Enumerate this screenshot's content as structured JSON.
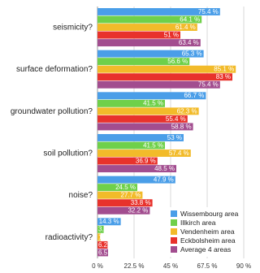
{
  "chart_data": {
    "type": "hbar",
    "categories": [
      "seismicity?",
      "surface deformation?",
      "groundwater pollution?",
      "soil pollution?",
      "noise?",
      "radioactivity?"
    ],
    "series": [
      {
        "name": "Wissembourg area",
        "color": "#4a9ee8",
        "values": [
          75.4,
          65.3,
          66.7,
          53,
          47.9,
          14.3
        ],
        "value_labels": [
          "75.4 %",
          "65.3 %",
          "66.7 %",
          "53 %",
          "47.9 %",
          "14.3 %"
        ]
      },
      {
        "name": "Illkirch area",
        "color": "#6fd04a",
        "values": [
          64.1,
          56.6,
          41.5,
          41.5,
          24.5,
          3.8
        ],
        "value_labels": [
          "64.1 %",
          "56.6 %",
          "41.5 %",
          "41.5 %",
          "24.5 %",
          "3.8 %"
        ]
      },
      {
        "name": "Vendenheim area",
        "color": "#f2bb2a",
        "values": [
          61.4,
          85.1,
          62.3,
          57.4,
          27.7,
          1.9
        ],
        "value_labels": [
          "61.4 %",
          "85.1 %",
          "62.3 %",
          "57.4 %",
          "27.7 %",
          "1.9 %"
        ]
      },
      {
        "name": "Eckbolsheim area",
        "color": "#e8322c",
        "values": [
          51,
          83,
          55.4,
          36.9,
          33.8,
          6.2
        ],
        "value_labels": [
          "51 %",
          "83 %",
          "55.4 %",
          "36.9 %",
          "33.8 %",
          "6.2 %"
        ]
      },
      {
        "name": "Average 4 areas",
        "color": "#a24d8f",
        "values": [
          63.4,
          75.4,
          58.8,
          48.5,
          32.2,
          6.5
        ],
        "value_labels": [
          "63.4 %",
          "75.4 %",
          "58.8 %",
          "48.5 %",
          "32.2 %",
          "6.5 %"
        ]
      }
    ],
    "xlim": [
      0,
      90
    ],
    "xticks": [
      {
        "value": 0,
        "label": "0 %"
      },
      {
        "value": 22.5,
        "label": "22.5 %"
      },
      {
        "value": 45,
        "label": "45 %"
      },
      {
        "value": 67.5,
        "label": "67.5 %"
      },
      {
        "value": 90,
        "label": "90 %"
      }
    ],
    "grid": true,
    "legend": "bottom-right"
  }
}
